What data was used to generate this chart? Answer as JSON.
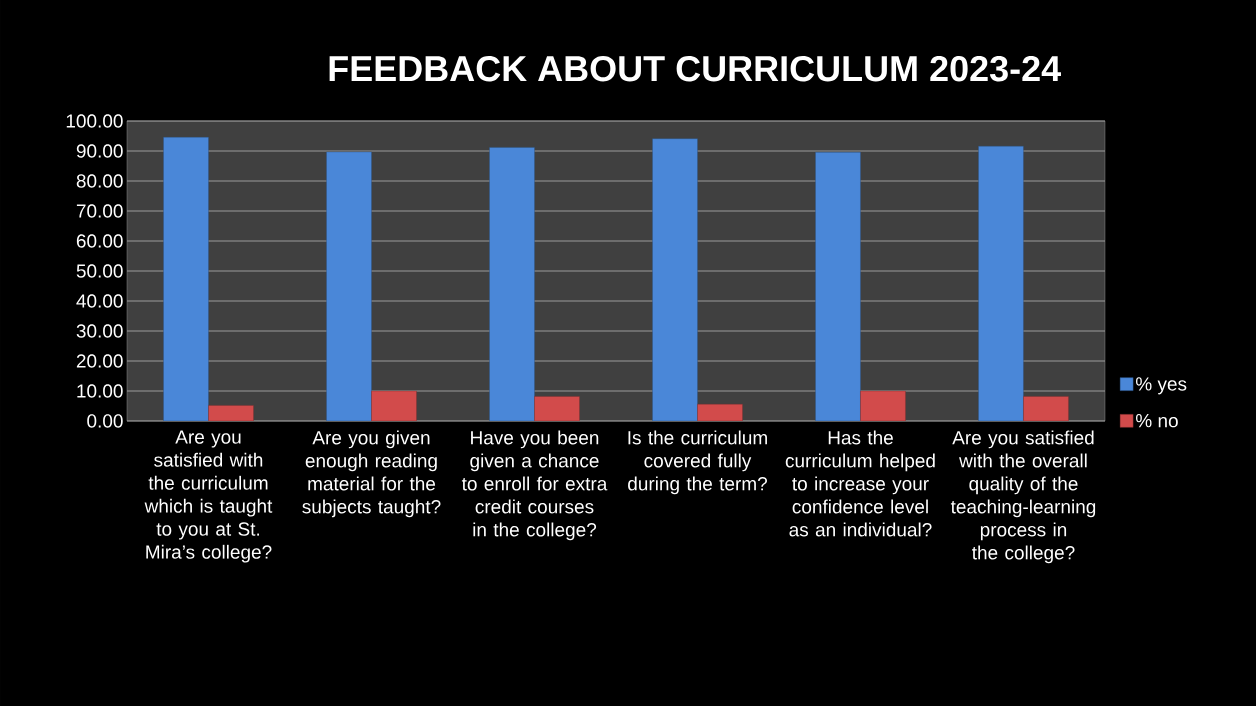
{
  "chart_data": {
    "type": "bar",
    "title": "FEEDBACK ABOUT CURRICULUM 2023-24",
    "categories": [
      "Are you satisfied with the curriculum which is taught to you at St. Mira’s college?",
      "Are you given enough reading material for the subjects taught?",
      "Have you been given a chance to enroll for extra credit courses in the college?",
      "Is the curriculum covered fully during the term?",
      "Has the curriculum helped to increase your confidence level as an individual?",
      "Are you satisfied with the overall quality of the teaching-learning process in the college?"
    ],
    "series": [
      {
        "name": "% yes",
        "color": "#4a87d8",
        "values": [
          94.6,
          89.7,
          91.2,
          94.1,
          89.6,
          91.6
        ]
      },
      {
        "name": "% no",
        "color": "#d24b4b",
        "values": [
          5.2,
          10.0,
          8.2,
          5.6,
          10.0,
          8.2
        ]
      }
    ],
    "ylim": [
      0,
      100
    ],
    "yticks": [
      {
        "value": 0,
        "label": "0.00"
      },
      {
        "value": 10,
        "label": "10.00"
      },
      {
        "value": 20,
        "label": "20.00"
      },
      {
        "value": 30,
        "label": "30.00"
      },
      {
        "value": 40,
        "label": "40.00"
      },
      {
        "value": 50,
        "label": "50.00"
      },
      {
        "value": 60,
        "label": "60.00"
      },
      {
        "value": 70,
        "label": "70.00"
      },
      {
        "value": 80,
        "label": "80.00"
      },
      {
        "value": 90,
        "label": "90.00"
      },
      {
        "value": 100,
        "label": "100.00"
      }
    ],
    "grid": "y",
    "legend": "right"
  }
}
